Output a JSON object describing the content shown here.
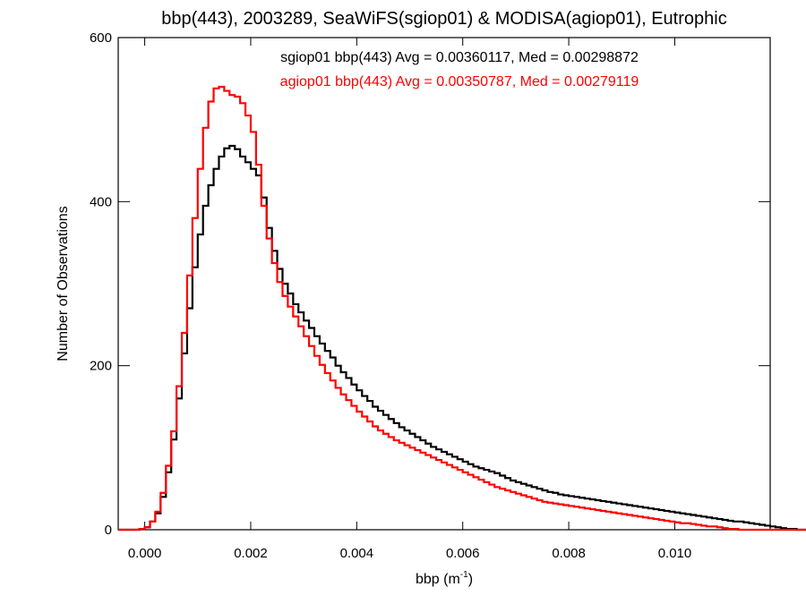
{
  "chart_data": {
    "type": "line",
    "title": "bbp(443), 2003289, SeaWiFS(sgiop01) & MODISA(agiop01), Eutrophic",
    "xlabel": "bbp (m",
    "xlabel_exponent": "-1",
    "xlabel_close": ")",
    "ylabel": "Number of Observations",
    "xlim": [
      -0.0005,
      0.0118
    ],
    "ylim": [
      0,
      600
    ],
    "x_ticks": [
      0.0,
      0.002,
      0.004,
      0.006,
      0.008,
      0.01
    ],
    "x_tick_labels": [
      "0.000",
      "0.002",
      "0.004",
      "0.006",
      "0.008",
      "0.010"
    ],
    "y_ticks": [
      0,
      200,
      400,
      600
    ],
    "y_tick_labels": [
      "0",
      "200",
      "400",
      "600"
    ],
    "grid": false,
    "bin_width": 0.0001,
    "x_start": -0.0005,
    "series": [
      {
        "name": "sgiop01 bbp(443) Avg = 0.00360117, Med = 0.00298872",
        "color": "#000000",
        "values": [
          0,
          0,
          0,
          0,
          1,
          3,
          10,
          20,
          40,
          70,
          110,
          160,
          215,
          270,
          320,
          360,
          395,
          420,
          440,
          455,
          465,
          468,
          464,
          455,
          448,
          440,
          432,
          405,
          368,
          340,
          318,
          300,
          288,
          275,
          265,
          255,
          246,
          236,
          227,
          218,
          210,
          200,
          192,
          185,
          177,
          170,
          163,
          157,
          150,
          145,
          140,
          135,
          130,
          125,
          121,
          117,
          113,
          109,
          105,
          101,
          98,
          95,
          92,
          89,
          86,
          83,
          80,
          77,
          75,
          73,
          71,
          69,
          66,
          63,
          60,
          58,
          56,
          54,
          52,
          50,
          48,
          46,
          45,
          43,
          42,
          41,
          40,
          39,
          38,
          37,
          36,
          35,
          34,
          33,
          32,
          31,
          30,
          29,
          28,
          27,
          26,
          25,
          24,
          23,
          22,
          21,
          20,
          19,
          18,
          17,
          16,
          15,
          14,
          13,
          12,
          11,
          10,
          10,
          9,
          8,
          7,
          6,
          5,
          4,
          3,
          2,
          1,
          1,
          0,
          0,
          0,
          0,
          0,
          0,
          0,
          0,
          0,
          0
        ]
      },
      {
        "name": "agiop01 bbp(443) Avg = 0.00350787, Med = 0.00279119",
        "color": "#ff0000",
        "values": [
          0,
          0,
          0,
          0,
          1,
          3,
          10,
          22,
          45,
          78,
          120,
          175,
          240,
          310,
          380,
          440,
          490,
          522,
          538,
          540,
          535,
          530,
          528,
          520,
          505,
          485,
          445,
          395,
          355,
          325,
          302,
          285,
          272,
          260,
          248,
          236,
          224,
          212,
          201,
          191,
          182,
          173,
          165,
          158,
          151,
          144,
          138,
          132,
          126,
          121,
          117,
          113,
          109,
          106,
          103,
          100,
          97,
          94,
          91,
          88,
          85,
          82,
          79,
          76,
          73,
          70,
          67,
          64,
          61,
          58,
          55,
          52,
          50,
          48,
          46,
          44,
          42,
          40,
          38,
          36,
          34,
          33,
          32,
          31,
          30,
          29,
          28,
          27,
          26,
          25,
          24,
          23,
          22,
          21,
          20,
          19,
          18,
          17,
          16,
          15,
          14,
          13,
          12,
          11,
          10,
          9,
          8,
          8,
          7,
          6,
          5,
          4,
          4,
          3,
          2,
          1,
          1,
          0,
          0,
          0,
          0,
          0,
          0,
          0,
          0,
          0,
          0,
          0,
          0,
          0,
          0,
          0,
          0,
          0,
          0,
          0,
          0,
          0,
          0,
          0,
          0,
          0
        ]
      }
    ]
  }
}
